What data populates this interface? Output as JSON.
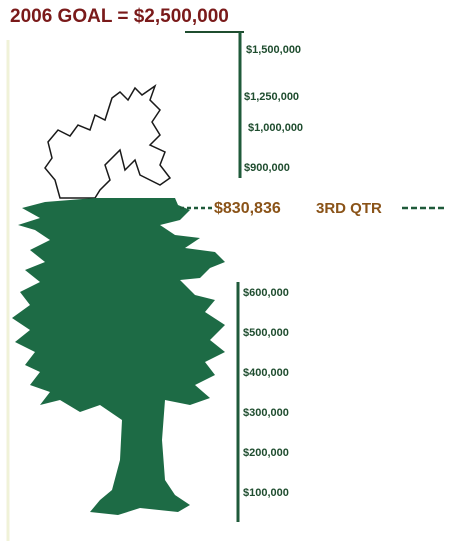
{
  "title": "2006 GOAL = $2,500,000",
  "scale_upper": [
    "$1,500,000",
    "$1,250,000",
    "$1,000,000",
    "$900,000"
  ],
  "scale_lower": [
    "$600,000",
    "$500,000",
    "$400,000",
    "$300,000",
    "$200,000",
    "$100,000"
  ],
  "marker": {
    "amount": "$830,836",
    "period": "3RD QTR"
  }
}
